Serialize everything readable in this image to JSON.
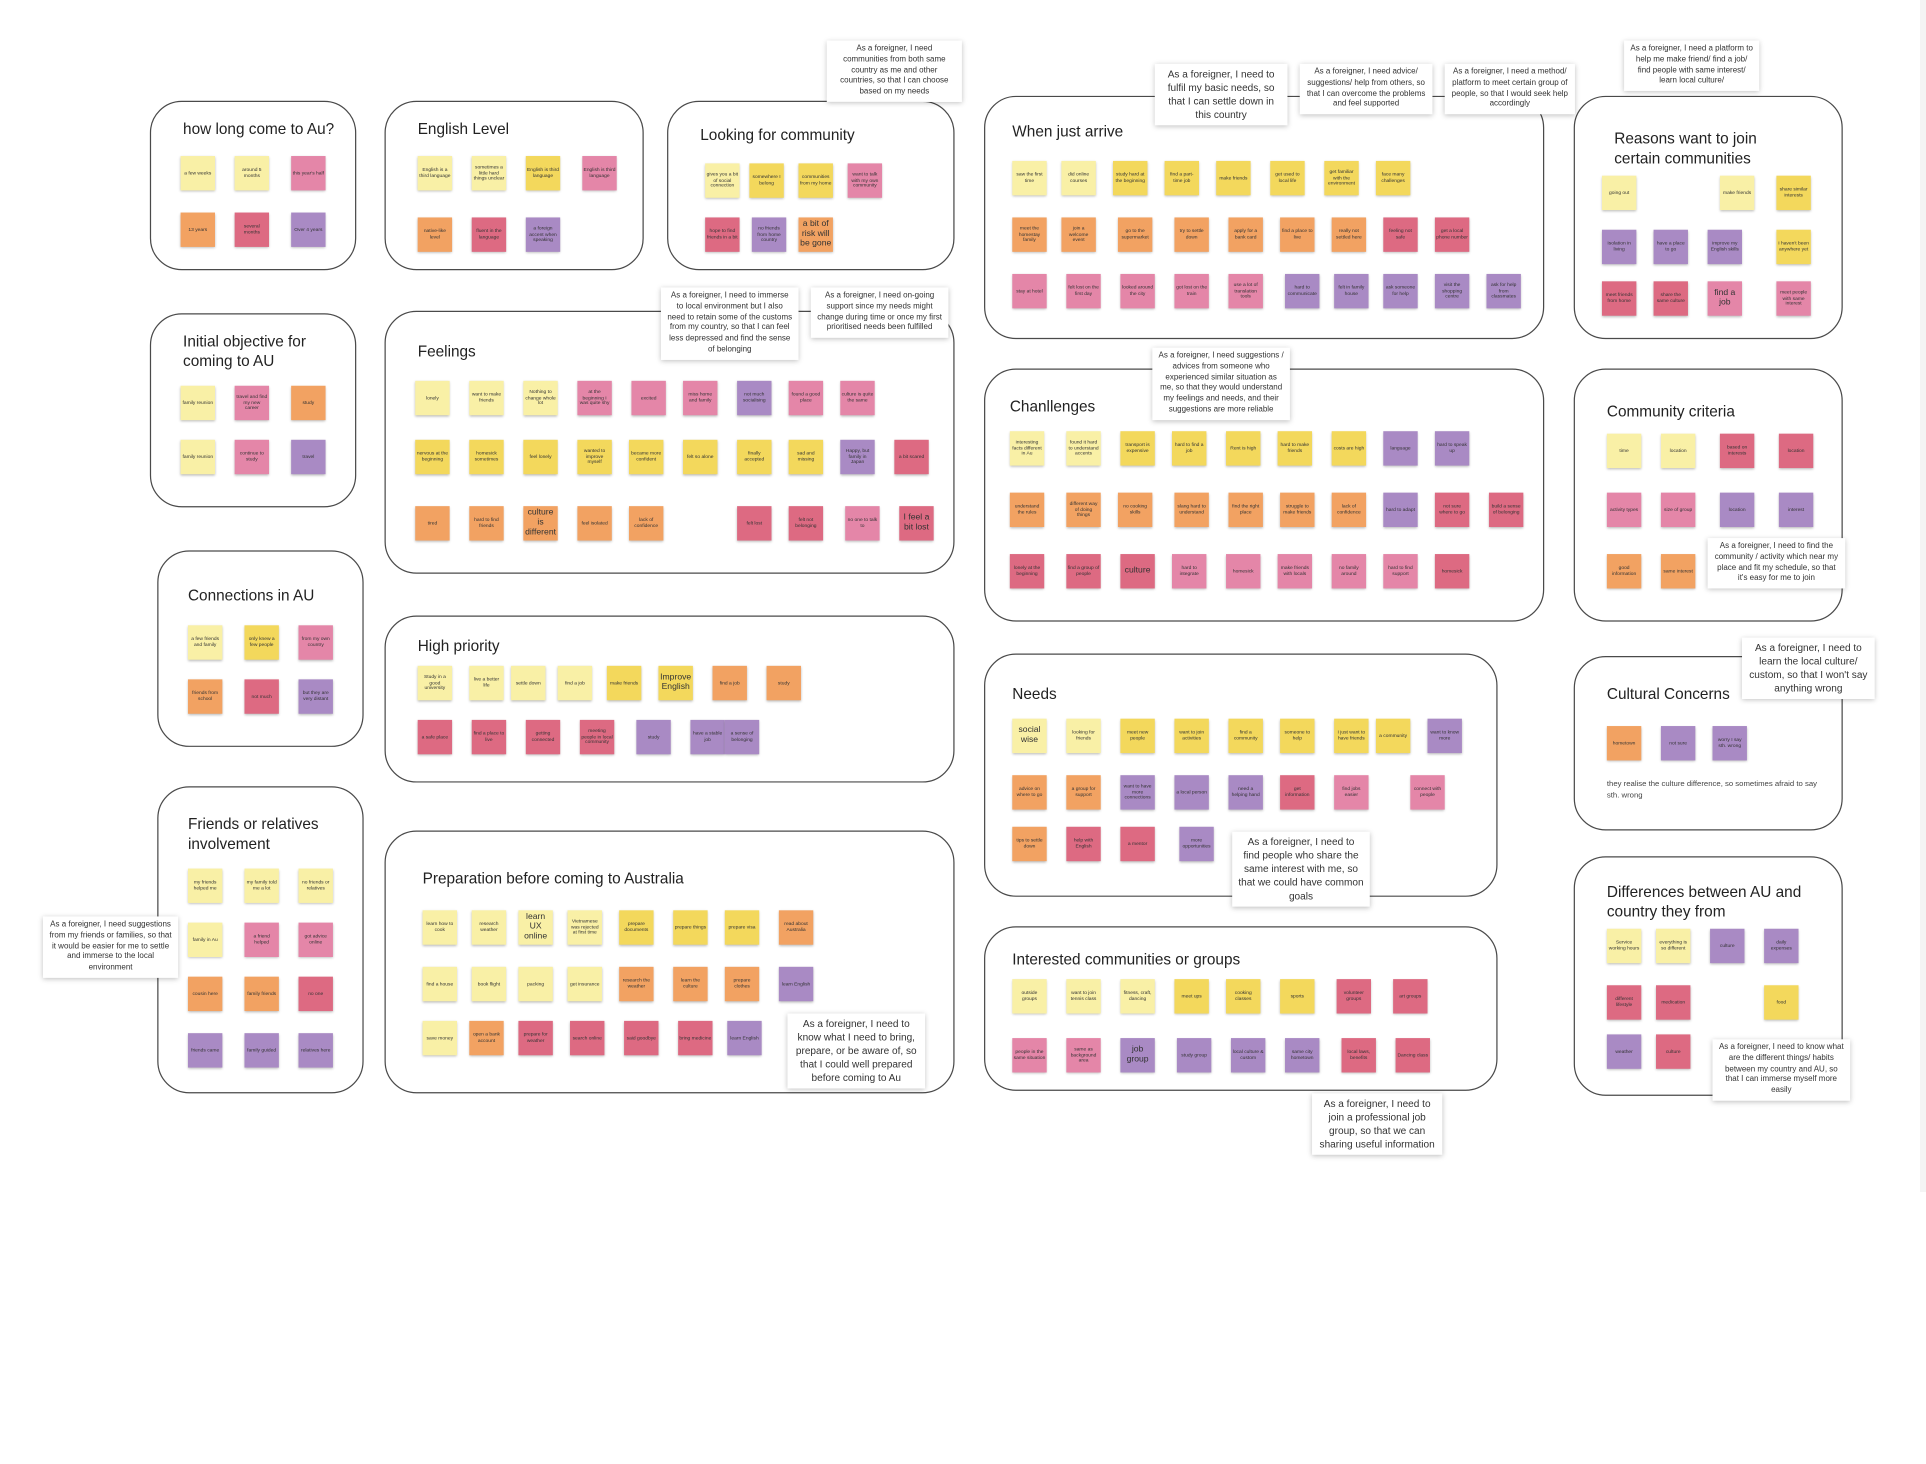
{
  "clusters": {
    "c_how_long": {
      "title": "how long come to Au?"
    },
    "c_english": {
      "title": "English Level"
    },
    "c_looking": {
      "title": "Looking for community"
    },
    "c_arrive": {
      "title": "When just arrive"
    },
    "c_reasons": {
      "title": "Reasons want to join certain communities"
    },
    "c_initial": {
      "title": "Initial objective for coming to AU"
    },
    "c_feelings": {
      "title": "Feelings"
    },
    "c_challenges": {
      "title": "Chanllenges"
    },
    "c_criteria": {
      "title": "Community criteria"
    },
    "c_connections": {
      "title": "Connections in AU"
    },
    "c_high": {
      "title": "High priority"
    },
    "c_needs": {
      "title": "Needs"
    },
    "c_cultural": {
      "title": "Cultural Concerns"
    },
    "c_friends": {
      "title": "Friends or relatives involvement"
    },
    "c_prep": {
      "title": "Preparation before coming to Australia"
    },
    "c_interested": {
      "title": "Interested communities or groups"
    },
    "c_diff": {
      "title": "Differences between AU and country they from"
    }
  },
  "stickies": {
    "s1": "a few weeks",
    "s2": "around 5 months",
    "s3": "this year's half",
    "s4": "13 years",
    "s5": "several months",
    "s6": "Over 4 years",
    "s7": "English is a third language",
    "s8": "sometimes a little hard things unclear",
    "s9": "English is third language",
    "s10": "English is third language",
    "s11": "native-like level",
    "s12": "fluent in the language",
    "s13": "a foreign accent when speaking",
    "s14": "gives you a bit of social connection",
    "s15": "somewhere I belong",
    "s16": "communities from my home",
    "s17": "want to talk with my own community",
    "s18": "hope to find friends in a bit",
    "s19": "no friends from home country",
    "s20": "a bit of risk will be gone",
    "s21": "saw the first time",
    "s22": "did online courses",
    "s23": "study hard at the beginning",
    "s24": "find a part-time job",
    "s25": "make friends",
    "s26": "get used to local life",
    "s27": "get familiar with the environment",
    "s28": "face many challenges",
    "s29": "meet the homestay family",
    "s30": "join a welcome event",
    "s31": "go to the supermarket",
    "s32": "try to settle down",
    "s33": "apply for a bank card",
    "s34": "find a place to live",
    "s35": "really not settled here",
    "s36": "feeling not safe",
    "s37": "get a local phone number",
    "s38": "stay at hotel",
    "s39": "felt lost on the first day",
    "s40": "looked around the city",
    "s41": "got lost on the train",
    "s42": "use a lot of translation tools",
    "s43": "hard to communicate",
    "s44": "felt in family house",
    "s45": "ask someone for help",
    "s46": "visit the shopping centre",
    "s47": "ask for help from classmates",
    "s48": "find friends online",
    "s49": "going out",
    "s50": "make friends",
    "s51": "share similar interests",
    "s52": "learn new skills",
    "s53": "Isolation in living",
    "s54": "have a place to go",
    "s55": "improve my English skills",
    "s56": "I haven't been anywhere yet",
    "s57": "meet friends from home",
    "s58": "share the same culture",
    "s59": "find a job",
    "s60": "meet people with same interest",
    "s61": "family reunion",
    "s62": "travel and find my new career",
    "s63": "study",
    "s64": "family reunion",
    "s65": "continue to study",
    "s66": "travel",
    "s67": "lonely",
    "s68": "want to make friends",
    "s69": "Nothing to change whole lot",
    "s70": "at the beginning I was quite shy",
    "s71": "excited",
    "s72": "miss home and family",
    "s73": "not much socialising",
    "s74": "found a good place",
    "s75": "culture is quite the same",
    "s76": "nervous at the beginning",
    "s77": "homesick sometimes",
    "s78": "feel lonely",
    "s79": "wanted to improve myself",
    "s80": "became more confident",
    "s81": "felt so alone",
    "s82": "finally accepted",
    "s83": "sad and missing",
    "s84": "Happy, but family in Japan",
    "s85": "a bit scared",
    "s86": "tired",
    "s87": "hard to find friends",
    "s88": "culture is different",
    "s89": "feel isolated",
    "s90": "lack of confidence",
    "s91": "felt lost",
    "s92": "felt not belonging",
    "s93": "no one to talk to",
    "s94": "I feel a bit lost",
    "s95": "interesting facts different in Au",
    "s96": "found it hard to understand accents",
    "s97": "transport is expensive",
    "s98": "hard to find a job",
    "s99": "Rent is high",
    "s100": "hard to make friends",
    "s101": "costs are high",
    "s102": "language",
    "s103": "hard to speak up",
    "s104": "understand the rules",
    "s105": "different way of doing things",
    "s106": "no cooking skills",
    "s107": "slang hard to understand",
    "s108": "find the right place",
    "s109": "struggle to make friends",
    "s110": "lack of confidence",
    "s111": "hard to adapt",
    "s112": "not sure where to go",
    "s113": "build a sense of belonging",
    "s114": "lonely at the beginning",
    "s115": "find a group of people",
    "s116": "culture",
    "s117": "hard to integrate",
    "s118": "homesick",
    "s119": "make friends with locals",
    "s120": "no family around",
    "s121": "hard to find support",
    "s122": "a few friends and family",
    "s123": "only knew a few people",
    "s124": "from my own country",
    "s125": "friends from school",
    "s126": "not much",
    "s127": "but they are very distant",
    "s128": "Study in a good university",
    "s129": "live a better life",
    "s130": "settle down",
    "s131": "find a job",
    "s132": "make friends",
    "s133": "Improve English",
    "s134": "find a job",
    "s135": "study",
    "s136": "a safe place",
    "s137": "find a place to live",
    "s138": "getting connected",
    "s139": "meeting people in local community",
    "s140": "study",
    "s141": "have a stable job",
    "s142": "a sense of belonging",
    "s143": "social wise",
    "s144": "looking for friends",
    "s145": "meet new people",
    "s146": "want to join activities",
    "s147": "find a community",
    "s148": "someone to help",
    "s149": "I just want to have friends",
    "s150": "a community",
    "s151": "want to know more",
    "s152": "advice on where to go",
    "s153": "a group for support",
    "s154": "want to have more connections",
    "s155": "a local person",
    "s156": "need a helping hand",
    "s157": "get information",
    "s158": "find jobs easier",
    "s159": "connect with people",
    "s160": "tips to settle down",
    "s161": "help with English",
    "s162": "a mentor",
    "s163": "more opportunities",
    "s164": "time",
    "s165": "location",
    "s166": "based on interests",
    "s167": "location",
    "s168": "activity types",
    "s169": "size of group",
    "s170": "location",
    "s171": "interest",
    "s172": "good information",
    "s173": "same interest",
    "s174": "my friends helped me",
    "s175": "my family told me a lot",
    "s176": "no friends or relatives",
    "s177": "family in Au",
    "s178": "a friend helped",
    "s179": "got advice online",
    "s180": "through friends",
    "s181": "cousin here",
    "s182": "family friends",
    "s183": "no one",
    "s184": "friends came",
    "s185": "family guided",
    "s186": "relatives here",
    "s187": "learn how to cook",
    "s188": "research weather",
    "s189": "learn UX online",
    "s190": "Vietnamese was rejected at first time",
    "s191": "prepare documents",
    "s192": "prepare things",
    "s193": "prepare visa",
    "s194": "read about Australia",
    "s195": "find a house",
    "s196": "book flight",
    "s197": "packing",
    "s198": "get insurance",
    "s199": "research the weather",
    "s200": "learn the culture",
    "s201": "prepare clothes",
    "s202": "learn English",
    "s203": "save money",
    "s204": "open a bank account",
    "s205": "prepare for weather",
    "s206": "search online",
    "s207": "said goodbye",
    "s208": "bring medicine",
    "s209": "outside groups",
    "s210": "want to join tennis class",
    "s211": "fitness, craft, dancing",
    "s212": "meet ups",
    "s213": "cooking classes",
    "s214": "sports",
    "s215": "volunteer groups",
    "s216": "art groups",
    "s217": "people in the same situation",
    "s218": "same as background area",
    "s219": "job group",
    "s220": "study group",
    "s221": "local culture & custom",
    "s222": "same city hometown",
    "s223": "local laws, benefits",
    "s224": "Dancing class",
    "s225": "hometown",
    "s226": "not sure",
    "s227": "worry I say sth. wrong",
    "s228": "Service working hours",
    "s229": "everything is so different",
    "s230": "culture",
    "s231": "daily expenses",
    "s232": "different lifestyle",
    "s233": "medication",
    "s234": "food",
    "s235": "weather",
    "s236": "culture"
  },
  "notes": {
    "n1": "As a foreigner, I need communities from both same country as me and other countries, so that I can choose based on my needs",
    "n2": "As a foreigner, I need to fulfil my basic needs, so that I can settle down in this country",
    "n3": "As a foreigner, I need advice/ suggestions/ help from others, so that I can overcome the problems and feel supported",
    "n4": "As a foreigner, I need a method/ platform to meet certain group of people, so that I would seek help accordingly",
    "n5": "As a foreigner, I need a platform to help me make friend/ find a job/ find people with same interest/ learn local culture/",
    "n6": "As a foreigner, I need to immerse to local environment but I also need to retain some of the customs from my country, so that I can feel less depressed and find the sense of belonging",
    "n7": "As a foreigner, I need on-going support since my needs might change during time or once my first prioritised needs been fulfilled",
    "n8": "As a foreigner, I need suggestions / advices from someone who experienced similar situation as me, so that they would understand my feelings and needs, and their suggestions are more reliable",
    "n9": "As a foreigner, I need to find the community / activity which near my place and fit my schedule, so that it's easy for me to join",
    "n10": "As a foreigner, I need to learn the local culture/ custom, so that I won't say anything wrong",
    "n11": "As a foreigner, I need to find people who share the same interest with me, so that we could have common goals",
    "n12": "As a foreigner, I need suggestions from my friends or families, so that it would be easier for me to settle and immerse to the local environment",
    "n13": "As a foreigner, I need to know what I need to bring, prepare, or be aware of, so that I could well prepared before coming to Au",
    "n14": "As a foreigner, I need to join a professional job group, so that we can sharing useful information",
    "n15": "As a foreigner, I need to know what are the different things/ habits between my country and AU, so that I can immerse myself more easily"
  },
  "plain": {
    "cultural_text": "they realise the culture difference, so sometimes afraid to say sth. wrong"
  }
}
